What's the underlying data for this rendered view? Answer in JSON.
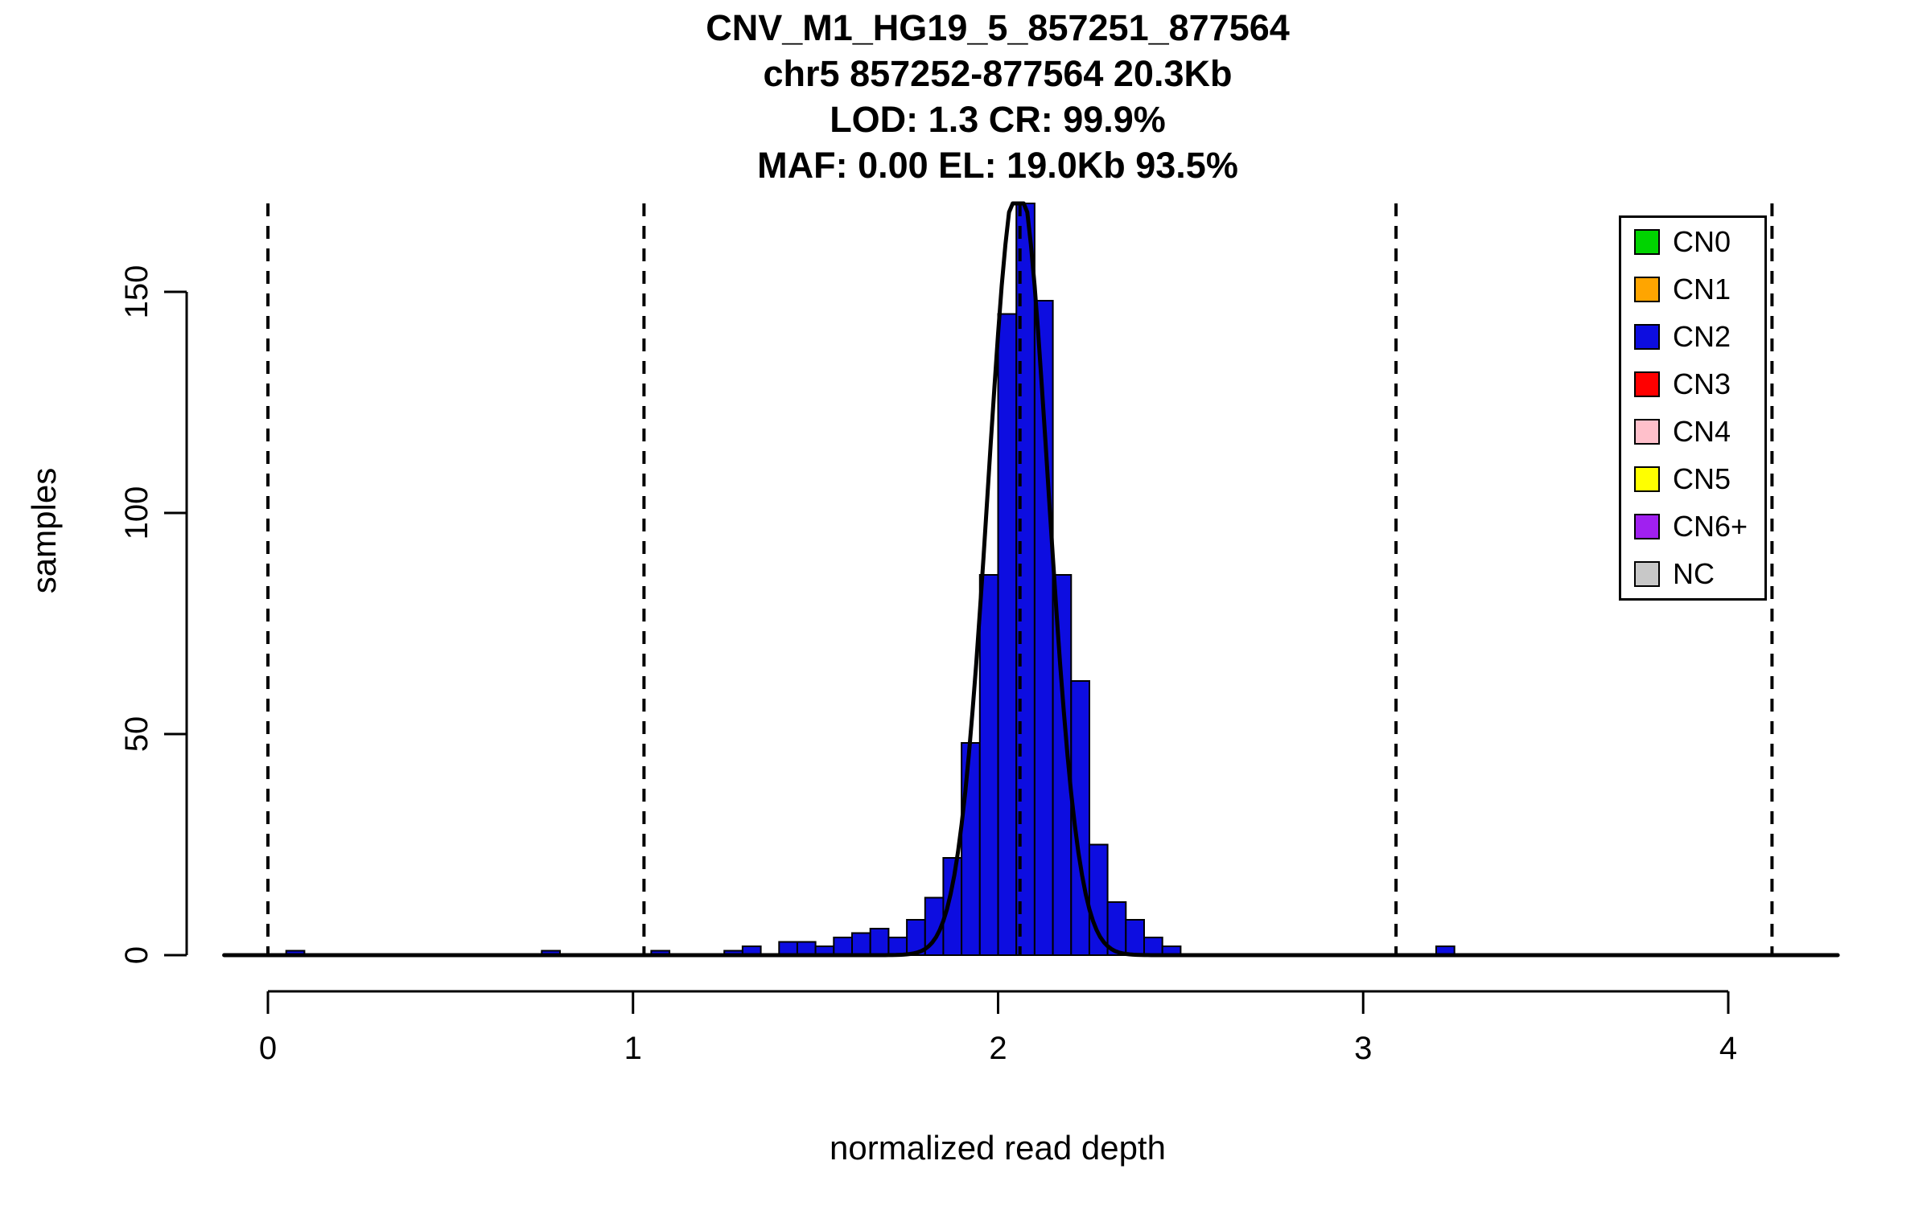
{
  "chart_data": {
    "type": "bar",
    "title": "CNV_M1_HG19_5_857251_877564",
    "subtitle_lines": [
      "chr5 857252-877564 20.3Kb",
      "LOD: 1.3 CR: 99.9%",
      "MAF: 0.00 EL: 19.0Kb 93.5%"
    ],
    "xlabel": "normalized read depth",
    "ylabel": "samples",
    "xlim": [
      -0.15,
      4.3
    ],
    "ylim": [
      0,
      170
    ],
    "x_ticks": [
      0,
      1,
      2,
      3,
      4
    ],
    "y_ticks": [
      0,
      50,
      100,
      150
    ],
    "grid": false,
    "legend_position": "top-right",
    "bin_width": 0.05,
    "bar_color": "#0d0de0",
    "bar_edge_color": "#000000",
    "bars": [
      {
        "x0": 0.05,
        "n": 1
      },
      {
        "x0": 0.75,
        "n": 1
      },
      {
        "x0": 1.05,
        "n": 1
      },
      {
        "x0": 1.25,
        "n": 1
      },
      {
        "x0": 1.3,
        "n": 2
      },
      {
        "x0": 1.4,
        "n": 3
      },
      {
        "x0": 1.45,
        "n": 3
      },
      {
        "x0": 1.5,
        "n": 2
      },
      {
        "x0": 1.55,
        "n": 4
      },
      {
        "x0": 1.6,
        "n": 5
      },
      {
        "x0": 1.65,
        "n": 6
      },
      {
        "x0": 1.7,
        "n": 4
      },
      {
        "x0": 1.75,
        "n": 8
      },
      {
        "x0": 1.8,
        "n": 13
      },
      {
        "x0": 1.85,
        "n": 22
      },
      {
        "x0": 1.9,
        "n": 48
      },
      {
        "x0": 1.95,
        "n": 86
      },
      {
        "x0": 2.0,
        "n": 145
      },
      {
        "x0": 2.05,
        "n": 172
      },
      {
        "x0": 2.1,
        "n": 148
      },
      {
        "x0": 2.15,
        "n": 86
      },
      {
        "x0": 2.2,
        "n": 62
      },
      {
        "x0": 2.25,
        "n": 25
      },
      {
        "x0": 2.3,
        "n": 12
      },
      {
        "x0": 2.35,
        "n": 8
      },
      {
        "x0": 2.4,
        "n": 4
      },
      {
        "x0": 2.45,
        "n": 2
      },
      {
        "x0": 3.2,
        "n": 2
      }
    ],
    "dashed_lines_x": [
      0,
      1.03,
      2.06,
      3.09,
      4.12
    ],
    "fit_curve": {
      "type": "gaussian",
      "mean": 2.055,
      "sd": 0.082,
      "amplitude": 176,
      "x_start": -0.12,
      "x_end": 4.3,
      "color": "#000000"
    }
  },
  "legend": {
    "items": [
      {
        "label": "CN0",
        "color": "#00d400"
      },
      {
        "label": "CN1",
        "color": "#ffa500"
      },
      {
        "label": "CN2",
        "color": "#0d0de0"
      },
      {
        "label": "CN3",
        "color": "#ff0000"
      },
      {
        "label": "CN4",
        "color": "#ffc0cb"
      },
      {
        "label": "CN5",
        "color": "#ffff00"
      },
      {
        "label": "CN6+",
        "color": "#a020f0"
      },
      {
        "label": "NC",
        "color": "#c8c8c8"
      }
    ]
  }
}
